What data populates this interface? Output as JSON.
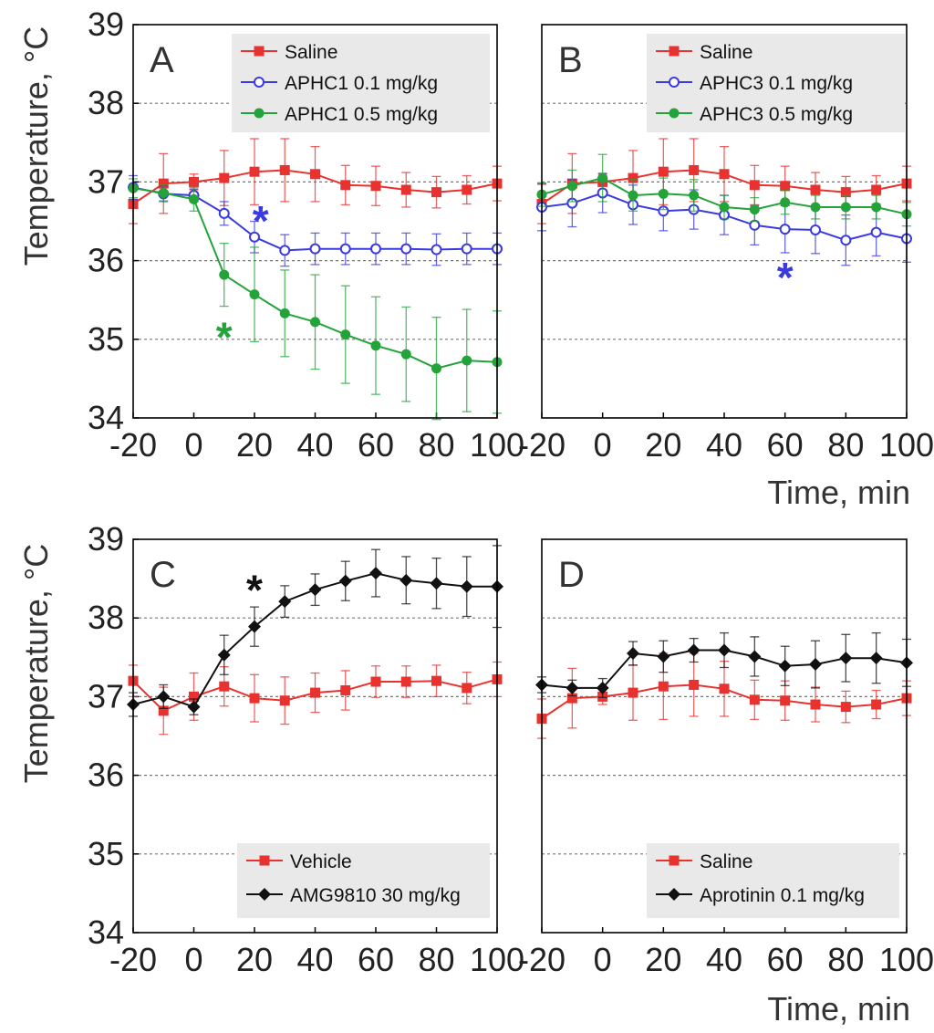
{
  "figure": {
    "ylabel": "Temperature, °C",
    "xlabel": "Time, min"
  },
  "chart_data": [
    {
      "type": "line",
      "panel": "A",
      "xlabel": "",
      "ylabel": "Temperature, °C",
      "xlim": [
        -20,
        100
      ],
      "ylim": [
        34,
        39
      ],
      "x_ticks": [
        "-20",
        "0",
        "20",
        "40",
        "60",
        "80",
        "100"
      ],
      "y_ticks": [
        "34",
        "35",
        "36",
        "37",
        "38",
        "39"
      ],
      "grid": "horizontal dashed at 35, 36, 37, 38",
      "legend_position": "top-right",
      "x": [
        -20,
        -10,
        0,
        10,
        20,
        30,
        40,
        50,
        60,
        70,
        80,
        90,
        100
      ],
      "series": [
        {
          "name": "Saline",
          "color": "#e8322f",
          "marker": "square",
          "values": [
            36.72,
            36.98,
            37.0,
            37.05,
            37.13,
            37.15,
            37.1,
            36.96,
            36.95,
            36.9,
            36.87,
            36.9,
            36.98
          ],
          "errors": [
            0.25,
            0.38,
            0.1,
            0.35,
            0.42,
            0.4,
            0.35,
            0.25,
            0.25,
            0.22,
            0.2,
            0.18,
            0.22
          ]
        },
        {
          "name": "APHC1 0.1 mg/kg",
          "color": "#3a3ae0",
          "marker": "open-circle",
          "values": [
            36.93,
            36.85,
            36.83,
            36.6,
            36.3,
            36.13,
            36.15,
            36.15,
            36.15,
            36.15,
            36.14,
            36.15,
            36.15
          ],
          "errors": [
            0.15,
            0.1,
            0.08,
            0.15,
            0.2,
            0.2,
            0.2,
            0.2,
            0.2,
            0.2,
            0.2,
            0.2,
            0.2
          ]
        },
        {
          "name": "APHC1 0.5 mg/kg",
          "color": "#23a33a",
          "marker": "circle",
          "values": [
            36.92,
            36.86,
            36.78,
            35.82,
            35.57,
            35.33,
            35.22,
            35.06,
            34.92,
            34.81,
            34.63,
            34.73,
            34.71
          ],
          "errors": [
            0.12,
            0.1,
            0.15,
            0.4,
            0.6,
            0.55,
            0.6,
            0.62,
            0.62,
            0.6,
            0.65,
            0.65,
            0.65
          ]
        }
      ],
      "annotations": [
        {
          "text": "*",
          "x": 22,
          "y": 36.6,
          "color": "#3a3ae0"
        },
        {
          "text": "*",
          "x": 10,
          "y": 35.12,
          "color": "#23a33a"
        }
      ]
    },
    {
      "type": "line",
      "panel": "B",
      "xlabel": "Time, min",
      "ylabel": "",
      "xlim": [
        -20,
        100
      ],
      "ylim": [
        34,
        39
      ],
      "x_ticks": [
        "-20",
        "0",
        "20",
        "40",
        "60",
        "80",
        "100"
      ],
      "y_ticks": [],
      "grid": "horizontal dashed at 35, 36, 37, 38",
      "legend_position": "top-right",
      "x": [
        -20,
        -10,
        0,
        10,
        20,
        30,
        40,
        50,
        60,
        70,
        80,
        90,
        100
      ],
      "series": [
        {
          "name": "Saline",
          "color": "#e8322f",
          "marker": "square",
          "values": [
            36.72,
            36.98,
            37.0,
            37.05,
            37.13,
            37.15,
            37.1,
            36.96,
            36.95,
            36.9,
            36.87,
            36.9,
            36.98
          ],
          "errors": [
            0.25,
            0.38,
            0.1,
            0.35,
            0.42,
            0.4,
            0.35,
            0.25,
            0.25,
            0.22,
            0.2,
            0.18,
            0.22
          ]
        },
        {
          "name": "APHC3 0.1 mg/kg",
          "color": "#3a3ae0",
          "marker": "open-circle",
          "values": [
            36.68,
            36.73,
            36.86,
            36.71,
            36.63,
            36.65,
            36.58,
            36.45,
            36.4,
            36.39,
            36.26,
            36.36,
            36.28
          ],
          "errors": [
            0.3,
            0.3,
            0.25,
            0.25,
            0.25,
            0.25,
            0.25,
            0.25,
            0.3,
            0.3,
            0.32,
            0.3,
            0.3
          ]
        },
        {
          "name": "APHC3 0.5 mg/kg",
          "color": "#23a33a",
          "marker": "circle",
          "values": [
            36.84,
            36.95,
            37.05,
            36.83,
            36.85,
            36.83,
            36.68,
            36.65,
            36.74,
            36.68,
            36.68,
            36.68,
            36.59
          ],
          "errors": [
            0.15,
            0.2,
            0.3,
            0.2,
            0.2,
            0.2,
            0.15,
            0.15,
            0.15,
            0.15,
            0.15,
            0.15,
            0.15
          ]
        }
      ],
      "annotations": [
        {
          "text": "*",
          "x": 60,
          "y": 35.88,
          "color": "#3a3ae0"
        }
      ]
    },
    {
      "type": "line",
      "panel": "C",
      "xlabel": "",
      "ylabel": "Temperature, °C",
      "xlim": [
        -20,
        100
      ],
      "ylim": [
        34,
        39
      ],
      "x_ticks": [
        "-20",
        "0",
        "20",
        "40",
        "60",
        "80",
        "100"
      ],
      "y_ticks": [
        "34",
        "35",
        "36",
        "37",
        "38",
        "39"
      ],
      "grid": "horizontal dashed at 35, 36, 37, 38",
      "legend_position": "bottom-right",
      "x": [
        -20,
        -10,
        0,
        10,
        20,
        30,
        40,
        50,
        60,
        70,
        80,
        90,
        100
      ],
      "series": [
        {
          "name": "Vehicle",
          "color": "#e8322f",
          "marker": "square",
          "values": [
            37.2,
            36.82,
            37.0,
            37.13,
            36.98,
            36.95,
            37.05,
            37.08,
            37.19,
            37.19,
            37.2,
            37.11,
            37.22
          ],
          "errors": [
            0.2,
            0.3,
            0.3,
            0.25,
            0.3,
            0.3,
            0.25,
            0.25,
            0.2,
            0.2,
            0.2,
            0.2,
            0.22
          ]
        },
        {
          "name": "AMG9810  30 mg/kg",
          "color": "#111111",
          "marker": "diamond",
          "values": [
            36.9,
            37.0,
            36.87,
            37.53,
            37.89,
            38.21,
            38.36,
            38.47,
            38.57,
            38.48,
            38.44,
            38.4,
            38.4
          ],
          "errors": [
            0.15,
            0.15,
            0.1,
            0.25,
            0.25,
            0.2,
            0.2,
            0.25,
            0.3,
            0.3,
            0.32,
            0.38,
            0.52
          ]
        }
      ],
      "annotations": [
        {
          "text": "*",
          "x": 20,
          "y": 38.45,
          "color": "#111111"
        }
      ]
    },
    {
      "type": "line",
      "panel": "D",
      "xlabel": "Time, min",
      "ylabel": "",
      "xlim": [
        -20,
        100
      ],
      "ylim": [
        34,
        39
      ],
      "x_ticks": [
        "-20",
        "0",
        "20",
        "40",
        "60",
        "80",
        "100"
      ],
      "y_ticks": [],
      "grid": "horizontal dashed at 35, 36, 37, 38",
      "legend_position": "bottom-right",
      "x": [
        -20,
        -10,
        0,
        10,
        20,
        30,
        40,
        50,
        60,
        70,
        80,
        90,
        100
      ],
      "series": [
        {
          "name": "Saline",
          "color": "#e8322f",
          "marker": "square",
          "values": [
            36.72,
            36.98,
            37.0,
            37.05,
            37.13,
            37.15,
            37.1,
            36.96,
            36.95,
            36.9,
            36.87,
            36.9,
            36.98
          ],
          "errors": [
            0.25,
            0.38,
            0.1,
            0.35,
            0.42,
            0.4,
            0.35,
            0.25,
            0.25,
            0.22,
            0.2,
            0.18,
            0.22
          ]
        },
        {
          "name": "Aprotinin 0.1 mg/kg",
          "color": "#111111",
          "marker": "diamond",
          "values": [
            37.15,
            37.11,
            37.11,
            37.55,
            37.51,
            37.59,
            37.59,
            37.51,
            37.39,
            37.41,
            37.49,
            37.49,
            37.43
          ],
          "errors": [
            0.1,
            0.1,
            0.12,
            0.15,
            0.2,
            0.15,
            0.22,
            0.25,
            0.25,
            0.3,
            0.3,
            0.32,
            0.3
          ]
        }
      ],
      "annotations": []
    }
  ]
}
